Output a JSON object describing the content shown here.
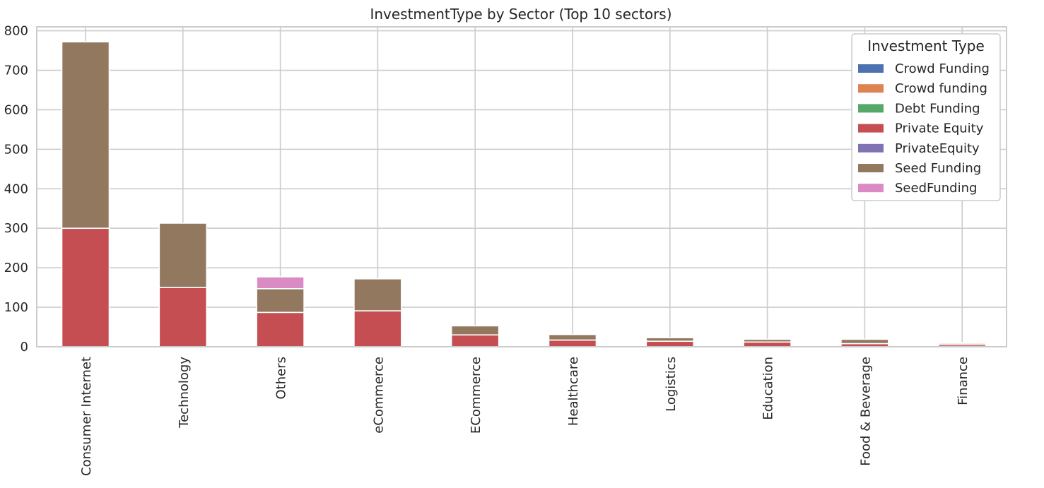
{
  "chart_data": {
    "type": "bar",
    "stacked": true,
    "title": "InvestmentType by Sector (Top 10 sectors)",
    "xlabel": "",
    "ylabel": "",
    "ylim": [
      0,
      810
    ],
    "yticks": [
      0,
      100,
      200,
      300,
      400,
      500,
      600,
      700,
      800
    ],
    "grid": true,
    "legend_title": "Investment Type",
    "legend_position": "top-right",
    "categories": [
      "Consumer Internet",
      "Technology",
      "Others",
      "eCommerce",
      "ECommerce",
      "Healthcare",
      "Logistics",
      "Education",
      "Food & Beverage",
      "Finance"
    ],
    "series": [
      {
        "name": "Crowd Funding",
        "color": "#4c72b0",
        "values": [
          0,
          0,
          0,
          0,
          0,
          0,
          0,
          0,
          0,
          0
        ]
      },
      {
        "name": "Crowd funding",
        "color": "#dd8452",
        "values": [
          0,
          0,
          0,
          0,
          0,
          0,
          0,
          0,
          0,
          0
        ]
      },
      {
        "name": "Debt Funding",
        "color": "#55a868",
        "values": [
          0,
          0,
          0,
          0,
          0,
          0,
          0,
          0,
          0,
          0
        ]
      },
      {
        "name": "Private Equity",
        "color": "#c44e52",
        "values": [
          300,
          150,
          87,
          91,
          30,
          17,
          14,
          12,
          8,
          5
        ]
      },
      {
        "name": "PrivateEquity",
        "color": "#8172b3",
        "values": [
          0,
          0,
          0,
          0,
          0,
          0,
          0,
          0,
          0,
          0
        ]
      },
      {
        "name": "Seed Funding",
        "color": "#937860",
        "values": [
          472,
          163,
          60,
          81,
          23,
          14,
          9,
          7,
          11,
          4
        ]
      },
      {
        "name": "SeedFunding",
        "color": "#da8bc3",
        "values": [
          0,
          0,
          30,
          0,
          0,
          0,
          0,
          0,
          0,
          2
        ]
      }
    ]
  }
}
